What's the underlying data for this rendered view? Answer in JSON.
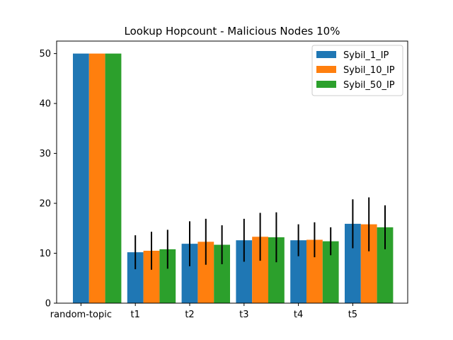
{
  "chart_data": {
    "type": "bar",
    "title": "Lookup Hopcount - Malicious Nodes 10%",
    "xlabel": "",
    "ylabel": "",
    "categories": [
      "random-topic",
      "t1",
      "t2",
      "t3",
      "t4",
      "t5"
    ],
    "ylim": [
      0,
      52.5
    ],
    "yticks": [
      0,
      10,
      20,
      30,
      40,
      50
    ],
    "legend_position": "top-right",
    "grid": false,
    "series": [
      {
        "name": "Sybil_1_IP",
        "color": "#1f77b4",
        "values": [
          50,
          10.2,
          11.9,
          12.6,
          12.6,
          15.9
        ],
        "errors": [
          0,
          3.4,
          4.5,
          4.3,
          3.2,
          4.9
        ]
      },
      {
        "name": "Sybil_10_IP",
        "color": "#ff7f0e",
        "values": [
          50,
          10.5,
          12.3,
          13.3,
          12.7,
          15.8
        ],
        "errors": [
          0,
          3.8,
          4.6,
          4.8,
          3.5,
          5.4
        ]
      },
      {
        "name": "Sybil_50_IP",
        "color": "#2ca02c",
        "values": [
          50,
          10.8,
          11.7,
          13.2,
          12.4,
          15.2
        ],
        "errors": [
          0,
          3.9,
          3.9,
          5.0,
          2.8,
          4.4
        ]
      }
    ]
  }
}
